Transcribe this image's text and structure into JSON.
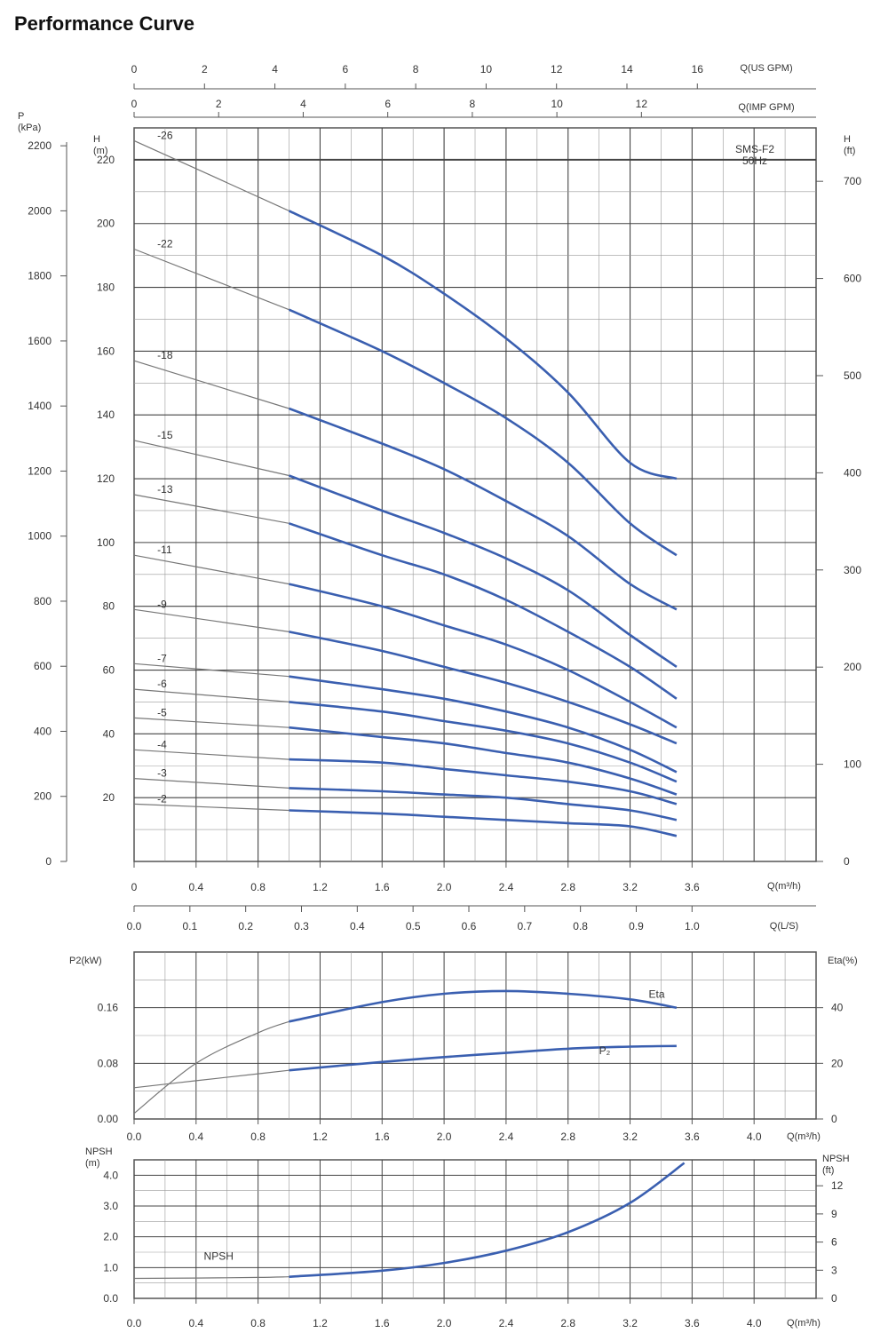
{
  "page": {
    "title": "Performance Curve"
  },
  "colors": {
    "curve": "#3a5fb0",
    "extension": "#777777",
    "grid": "#444444",
    "grid_minor": "#999999",
    "axis": "#555555"
  },
  "chart_data": [
    {
      "type": "line",
      "name": "head-curves",
      "annotation": "SMS-F2\n50Hz",
      "xlabel": "Q(m³/h)",
      "xlim": [
        0,
        4.4
      ],
      "xticks": [
        0,
        0.4,
        0.8,
        1.2,
        1.6,
        2.0,
        2.4,
        2.8,
        3.2,
        3.6
      ],
      "xtick_labels": [
        "0",
        "0.4",
        "0.8",
        "1.2",
        "1.6",
        "2.0",
        "2.4",
        "2.8",
        "3.2",
        "3.6"
      ],
      "ylabel": "H\n(m)",
      "ylim": [
        0,
        230
      ],
      "yticks": [
        20,
        40,
        60,
        80,
        100,
        120,
        140,
        160,
        180,
        200,
        220
      ],
      "secondary_axes": {
        "p_kpa": {
          "label": "P\n(kPa)",
          "range": [
            0,
            2255
          ],
          "ticks": [
            0,
            200,
            400,
            600,
            800,
            1000,
            1200,
            1400,
            1600,
            1800,
            2000,
            2200
          ]
        },
        "h_ft": {
          "label": "H\n(ft)",
          "range": [
            0,
            755
          ],
          "ticks": [
            0,
            100,
            200,
            300,
            400,
            500,
            600,
            700
          ]
        },
        "q_usgpm": {
          "label": "Q(US GPM)",
          "ticks": [
            0,
            2,
            4,
            6,
            8,
            10,
            12,
            14,
            16
          ],
          "factor": 4.403
        },
        "q_impgpm": {
          "label": "Q(IMP GPM)",
          "ticks": [
            0,
            2,
            4,
            6,
            8,
            10,
            12
          ],
          "factor": 3.666
        },
        "q_ls": {
          "label": "Q(L/S)",
          "ticks": [
            0.0,
            0.1,
            0.2,
            0.3,
            0.4,
            0.5,
            0.6,
            0.7,
            0.8,
            0.9,
            1.0
          ],
          "tick_labels": [
            "0.0",
            "0.1",
            "0.2",
            "0.3",
            "0.4",
            "0.5",
            "0.6",
            "0.7",
            "0.8",
            "0.9",
            "1.0"
          ],
          "factor": 0.2778
        }
      },
      "series": [
        {
          "name": "-26",
          "x": [
            0,
            1.0,
            1.6,
            2.0,
            2.4,
            2.8,
            3.2,
            3.5
          ],
          "y": [
            226,
            204,
            190,
            178,
            164,
            147,
            125,
            120
          ]
        },
        {
          "name": "-22",
          "x": [
            0,
            1.0,
            1.6,
            2.0,
            2.4,
            2.8,
            3.2,
            3.5
          ],
          "y": [
            192,
            173,
            160,
            150,
            139,
            125,
            106,
            96
          ]
        },
        {
          "name": "-18",
          "x": [
            0,
            1.0,
            1.6,
            2.0,
            2.4,
            2.8,
            3.2,
            3.5
          ],
          "y": [
            157,
            142,
            131,
            123,
            113,
            102,
            87,
            79
          ]
        },
        {
          "name": "-15",
          "x": [
            0,
            1.0,
            1.6,
            2.0,
            2.4,
            2.8,
            3.2,
            3.5
          ],
          "y": [
            132,
            121,
            110,
            103,
            95,
            85,
            71,
            61
          ]
        },
        {
          "name": "-13",
          "x": [
            0,
            1.0,
            1.6,
            2.0,
            2.4,
            2.8,
            3.2,
            3.5
          ],
          "y": [
            115,
            106,
            96,
            90,
            82,
            72,
            61,
            51
          ]
        },
        {
          "name": "-11",
          "x": [
            0,
            1.0,
            1.6,
            2.0,
            2.4,
            2.8,
            3.2,
            3.5
          ],
          "y": [
            96,
            87,
            80,
            74,
            68,
            60,
            50,
            42
          ]
        },
        {
          "name": "-9",
          "x": [
            0,
            1.0,
            1.6,
            2.0,
            2.4,
            2.8,
            3.2,
            3.5
          ],
          "y": [
            79,
            72,
            66,
            61,
            56,
            50,
            43,
            37
          ]
        },
        {
          "name": "-7",
          "x": [
            0,
            1.0,
            1.6,
            2.0,
            2.4,
            2.8,
            3.2,
            3.5
          ],
          "y": [
            62,
            58,
            54,
            51,
            47,
            42,
            35,
            28
          ]
        },
        {
          "name": "-6",
          "x": [
            0,
            1.0,
            1.6,
            2.0,
            2.4,
            2.8,
            3.2,
            3.5
          ],
          "y": [
            54,
            50,
            47,
            44,
            41,
            37,
            31,
            25
          ]
        },
        {
          "name": "-5",
          "x": [
            0,
            1.0,
            1.6,
            2.0,
            2.4,
            2.8,
            3.2,
            3.5
          ],
          "y": [
            45,
            42,
            39,
            37,
            34,
            31,
            26,
            21
          ]
        },
        {
          "name": "-4",
          "x": [
            0,
            1.0,
            1.6,
            2.0,
            2.4,
            2.8,
            3.2,
            3.5
          ],
          "y": [
            35,
            32,
            31,
            29,
            27,
            25,
            22,
            18
          ]
        },
        {
          "name": "-3",
          "x": [
            0,
            1.0,
            1.6,
            2.0,
            2.4,
            2.8,
            3.2,
            3.5
          ],
          "y": [
            26,
            23,
            22,
            21,
            20,
            18,
            16,
            13
          ]
        },
        {
          "name": "-2",
          "x": [
            0,
            1.0,
            1.6,
            2.0,
            2.4,
            2.8,
            3.2,
            3.5
          ],
          "y": [
            18,
            16,
            15,
            14,
            13,
            12,
            11,
            8
          ]
        }
      ]
    },
    {
      "type": "line",
      "name": "power-efficiency",
      "xlabel": "Q(m³/h)",
      "xlim": [
        0,
        4.4
      ],
      "xticks": [
        0,
        0.4,
        0.8,
        1.2,
        1.6,
        2.0,
        2.4,
        2.8,
        3.2,
        3.6,
        4.0
      ],
      "xtick_labels": [
        "0.0",
        "0.4",
        "0.8",
        "1.2",
        "1.6",
        "2.0",
        "2.4",
        "2.8",
        "3.2",
        "3.6",
        "4.0"
      ],
      "ylabel": "P2(kW)",
      "ylim": [
        0,
        0.24
      ],
      "yticks": [
        0.0,
        0.08,
        0.16
      ],
      "ytick_labels": [
        "0.00",
        "0.08",
        "0.16"
      ],
      "y2label": "Eta(%)",
      "y2lim": [
        0,
        60
      ],
      "y2ticks": [
        0,
        20,
        40
      ],
      "series": [
        {
          "name": "Eta",
          "axis": "y2",
          "x": [
            0,
            0.4,
            0.8,
            1.0,
            1.6,
            2.0,
            2.4,
            2.8,
            3.2,
            3.5
          ],
          "y": [
            2,
            20,
            31,
            35,
            42,
            45,
            46,
            45,
            43,
            40
          ]
        },
        {
          "name": "P₂",
          "axis": "y",
          "x": [
            0,
            0.4,
            0.8,
            1.0,
            1.6,
            2.0,
            2.4,
            2.8,
            3.2,
            3.5
          ],
          "y": [
            0.045,
            0.055,
            0.065,
            0.07,
            0.082,
            0.089,
            0.095,
            0.101,
            0.104,
            0.105
          ]
        }
      ]
    },
    {
      "type": "line",
      "name": "npsh",
      "xlabel": "Q(m³/h)",
      "xlim": [
        0,
        4.4
      ],
      "xticks": [
        0,
        0.4,
        0.8,
        1.2,
        1.6,
        2.0,
        2.4,
        2.8,
        3.2,
        3.6,
        4.0
      ],
      "xtick_labels": [
        "0.0",
        "0.4",
        "0.8",
        "1.2",
        "1.6",
        "2.0",
        "2.4",
        "2.8",
        "3.2",
        "3.6",
        "4.0"
      ],
      "ylabel": "NPSH\n(m)",
      "ylim": [
        0,
        4.5
      ],
      "yticks": [
        0.0,
        1.0,
        2.0,
        3.0,
        4.0
      ],
      "ytick_labels": [
        "0.0",
        "1.0",
        "2.0",
        "3.0",
        "4.0"
      ],
      "y2label": "NPSH\n(ft)",
      "y2ticks": [
        0,
        3,
        6,
        9,
        12
      ],
      "series": [
        {
          "name": "NPSH",
          "x": [
            0,
            0.4,
            0.8,
            1.0,
            1.6,
            2.0,
            2.4,
            2.8,
            3.2,
            3.55
          ],
          "y": [
            0.65,
            0.66,
            0.68,
            0.7,
            0.9,
            1.15,
            1.55,
            2.15,
            3.1,
            4.4
          ]
        }
      ]
    }
  ]
}
